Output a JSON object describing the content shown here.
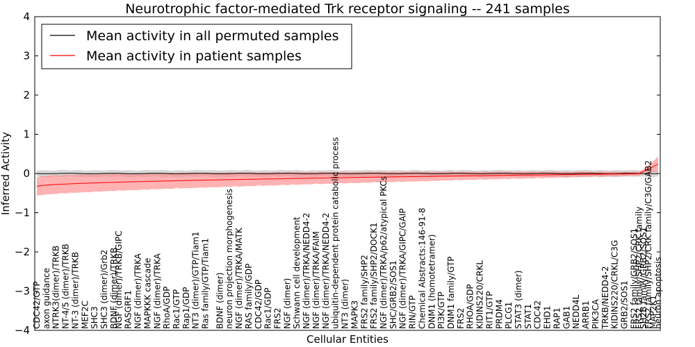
{
  "chart_data": {
    "type": "line",
    "title": "Neurotrophic factor-mediated Trk receptor signaling -- 241 samples",
    "xlabel": "Cellular Entities",
    "ylabel": "Inferred Activity",
    "ylim": [
      -4,
      4
    ],
    "yticks": [
      -4,
      -3,
      -2,
      -1,
      0,
      1,
      2,
      3,
      4
    ],
    "ytick_labels": [
      "−4",
      "−3",
      "−2",
      "−1",
      "0",
      "1",
      "2",
      "3",
      "4"
    ],
    "legend": {
      "placement": "top-left",
      "entries": [
        {
          "label": "Mean activity in all permuted samples",
          "color": "#000000"
        },
        {
          "label": "Mean activity in patient samples",
          "color": "#ff0000"
        }
      ]
    },
    "colors": {
      "patient_line": "#ff0000",
      "patient_band": "#ff7f7f",
      "permuted_line": "#000000",
      "permuted_band": "#c8c8c8"
    },
    "n_points": 130,
    "x_labels": [
      {
        "i": 0,
        "text": "CDC42/GTP"
      },
      {
        "i": 2,
        "text": "axon guidance"
      },
      {
        "i": 4,
        "text": "NTRK3(dimer)/TRKB"
      },
      {
        "i": 6,
        "text": "NT-4/5 (dimer)/TRKB"
      },
      {
        "i": 8,
        "text": "NT-3 (dimer)/TRKB"
      },
      {
        "i": 10,
        "text": "MEF2C"
      },
      {
        "i": 12,
        "text": "SHC3"
      },
      {
        "i": 14,
        "text": "SHC3 (dimer)/Grb2"
      },
      {
        "i": 16,
        "text": "BDNF (dimer)/TRKB"
      },
      {
        "i": 17,
        "text": "NGF (dimer)/TRKB/GIPC"
      },
      {
        "i": 19,
        "text": "RASGRF1"
      },
      {
        "i": 21,
        "text": "NGF (dimer)/TRKA"
      },
      {
        "i": 23,
        "text": "MAPKKK cascade"
      },
      {
        "i": 25,
        "text": "NGF (dimer)/TRKA"
      },
      {
        "i": 27,
        "text": "RhoA/GDP"
      },
      {
        "i": 29,
        "text": "Rac1/GTP"
      },
      {
        "i": 31,
        "text": "Rap1/GDP"
      },
      {
        "i": 33,
        "text": "NT3 (dimer)/GTP/Tiam1"
      },
      {
        "i": 35,
        "text": "Ras family/GTP/Tiam1"
      },
      {
        "i": 38,
        "text": "BDNF (dimer)"
      },
      {
        "i": 40,
        "text": "neuron projection morphogenesis"
      },
      {
        "i": 42,
        "text": "NGF (dimer)/TRKA/MATK"
      },
      {
        "i": 44,
        "text": "RAS family/GDP"
      },
      {
        "i": 46,
        "text": "CDC42/GDP"
      },
      {
        "i": 48,
        "text": "Rac1/GDP"
      },
      {
        "i": 50,
        "text": "FRS2"
      },
      {
        "i": 52,
        "text": "NGF (dimer)"
      },
      {
        "i": 54,
        "text": "Schwann cell development"
      },
      {
        "i": 56,
        "text": "NGF (dimer)/TRKA/NEDD4-2"
      },
      {
        "i": 58,
        "text": "NGF (dimer)/TRKA/FAIM"
      },
      {
        "i": 60,
        "text": "NGF (dimer)/TRKA/NEDD4-2"
      },
      {
        "i": 62,
        "text": "ubiquitin-dependent protein catabolic process"
      },
      {
        "i": 64,
        "text": "NT3 (dimer)"
      },
      {
        "i": 66,
        "text": "MAPK3"
      },
      {
        "i": 68,
        "text": "FRS2 family/SHP2"
      },
      {
        "i": 70,
        "text": "FRS2 family/SHP2/DOCK1"
      },
      {
        "i": 72,
        "text": "NGF (dimer)/TRKA/p62/atypical PKCs"
      },
      {
        "i": 74,
        "text": "SHC/GRB2/SOS1"
      },
      {
        "i": 76,
        "text": "NGF (dimer)/TRKA/GIPC/GAIP"
      },
      {
        "i": 78,
        "text": "RIN/GTP"
      },
      {
        "i": 80,
        "text": "Chemical Abstracts:146-91-8"
      },
      {
        "i": 82,
        "text": "DNM1 (homotetramer)"
      },
      {
        "i": 84,
        "text": "PI3K/GTP"
      },
      {
        "i": 86,
        "text": "DNM1 family/GTP"
      },
      {
        "i": 88,
        "text": "FRS2"
      },
      {
        "i": 90,
        "text": "RHOA/GDP"
      },
      {
        "i": 92,
        "text": "KIDINS220/CRKL"
      },
      {
        "i": 94,
        "text": "RIT1/GTP"
      },
      {
        "i": 96,
        "text": "PRDM4"
      },
      {
        "i": 98,
        "text": "PLCG1"
      },
      {
        "i": 100,
        "text": "STAT3 (dimer)"
      },
      {
        "i": 102,
        "text": "STAT1"
      },
      {
        "i": 104,
        "text": "CDC42"
      },
      {
        "i": 106,
        "text": "EHD1"
      },
      {
        "i": 108,
        "text": "RAP1"
      },
      {
        "i": 110,
        "text": "GAB1"
      },
      {
        "i": 112,
        "text": "NEDD4L"
      },
      {
        "i": 114,
        "text": "ARRB1"
      },
      {
        "i": 116,
        "text": "PIK3CA"
      },
      {
        "i": 118,
        "text": "TRKB/NEDD4-2"
      },
      {
        "i": 120,
        "text": "KIDINS220/CRKL/C3G"
      },
      {
        "i": 122,
        "text": "GRB2/SOS1"
      },
      {
        "i": 124,
        "text": "FRS2 family/GRB2/SOS1"
      },
      {
        "i": 125,
        "text": "FRS2 family/SHP2/CRK family"
      },
      {
        "i": 126,
        "text": "SH2B family/GRB2/SOS1"
      },
      {
        "i": 127,
        "text": "FRS2 family/SHP2/CRK family/C3G/GAB2"
      },
      {
        "i": 128,
        "text": "MAP2K1"
      },
      {
        "i": 129,
        "text": "neuron apoptosis"
      }
    ]
  }
}
